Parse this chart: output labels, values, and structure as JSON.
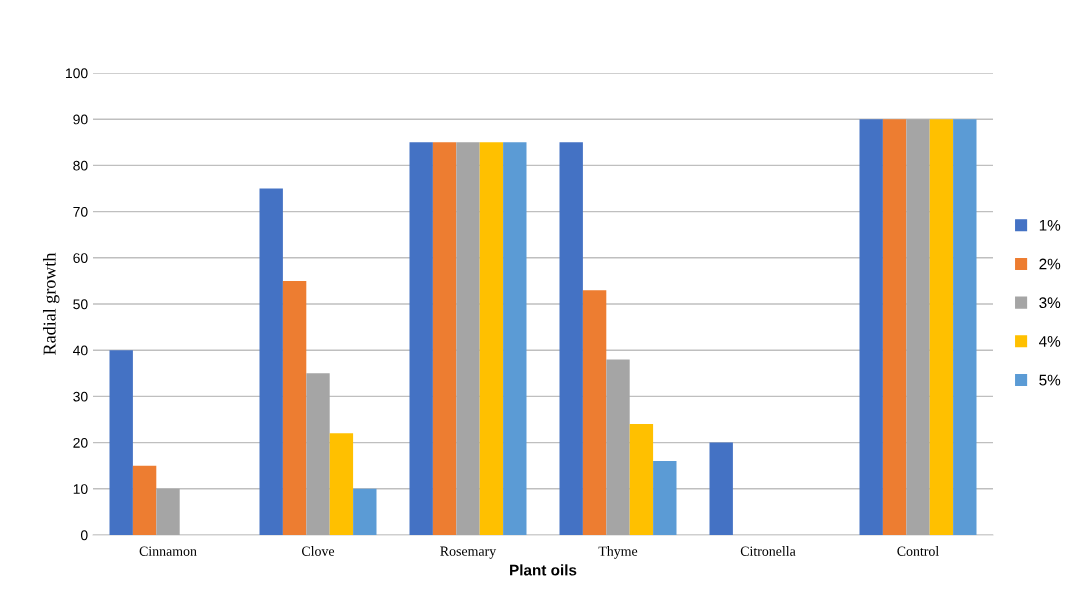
{
  "chart_data": {
    "type": "bar",
    "xlabel": "Plant oils",
    "ylabel": "Radial growth",
    "categories": [
      "Cinnamon",
      "Clove",
      "Rosemary",
      "Thyme",
      "Citronella",
      "Control"
    ],
    "series": [
      {
        "name": "1%",
        "color": "#4472c4",
        "values": [
          40,
          75,
          85,
          85,
          20,
          90
        ]
      },
      {
        "name": "2%",
        "color": "#ed7d31",
        "values": [
          15,
          55,
          85,
          53,
          0,
          90
        ]
      },
      {
        "name": "3%",
        "color": "#a5a5a5",
        "values": [
          10,
          35,
          85,
          38,
          0,
          90
        ]
      },
      {
        "name": "4%",
        "color": "#ffc000",
        "values": [
          0,
          22,
          85,
          24,
          0,
          90
        ]
      },
      {
        "name": "5%",
        "color": "#5b9bd5",
        "values": [
          0,
          10,
          85,
          16,
          0,
          90
        ]
      }
    ],
    "ylim": [
      0,
      100
    ],
    "yticks": [
      0,
      10,
      20,
      30,
      40,
      50,
      60,
      70,
      80,
      90,
      100
    ],
    "grid": "y",
    "legend": "right"
  }
}
